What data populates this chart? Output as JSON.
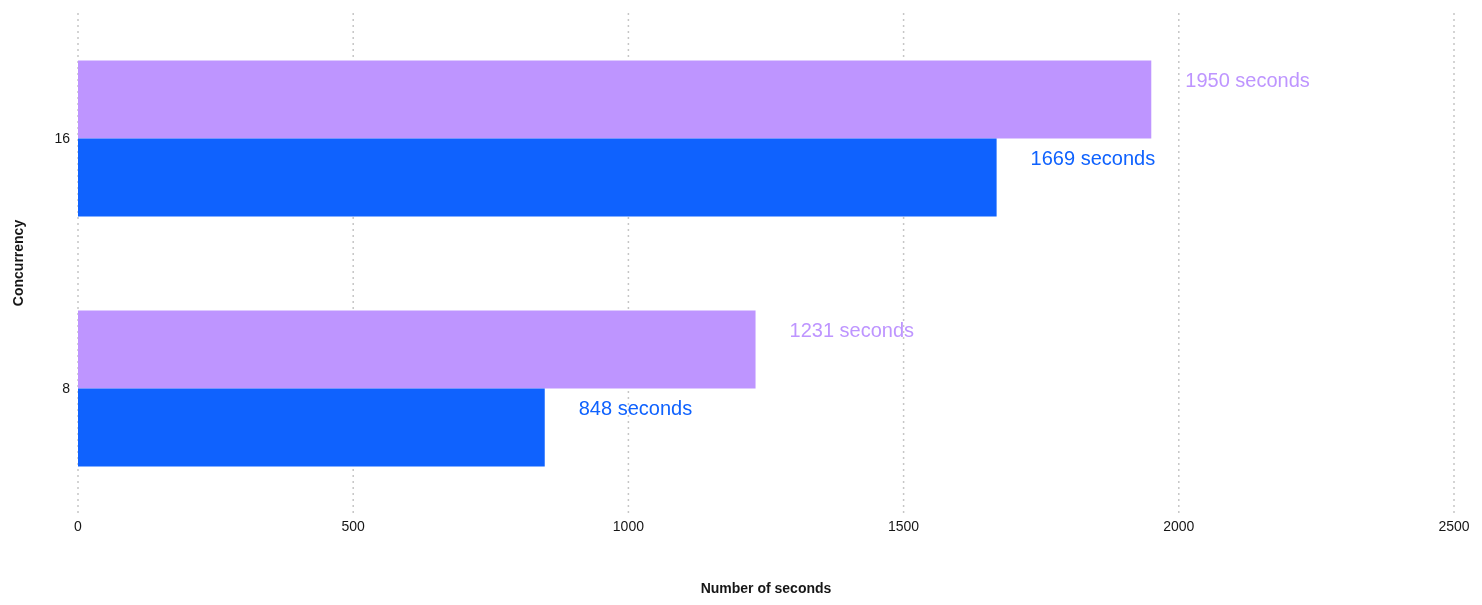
{
  "chart_data": {
    "type": "bar",
    "orientation": "horizontal",
    "categories": [
      "16",
      "8"
    ],
    "series": [
      {
        "color": "#be95ff",
        "values": [
          1950,
          1231
        ],
        "value_labels": [
          "1950 seconds",
          "1231 seconds"
        ]
      },
      {
        "color": "#0f62fe",
        "values": [
          1669,
          848
        ],
        "value_labels": [
          "1669 seconds",
          "848 seconds"
        ]
      }
    ],
    "xlim": [
      0,
      2500
    ],
    "xticks": [
      0,
      500,
      1000,
      1500,
      2000,
      2500
    ],
    "xlabel": "Number of seconds",
    "ylabel": "Concurrency",
    "grid": "x"
  }
}
